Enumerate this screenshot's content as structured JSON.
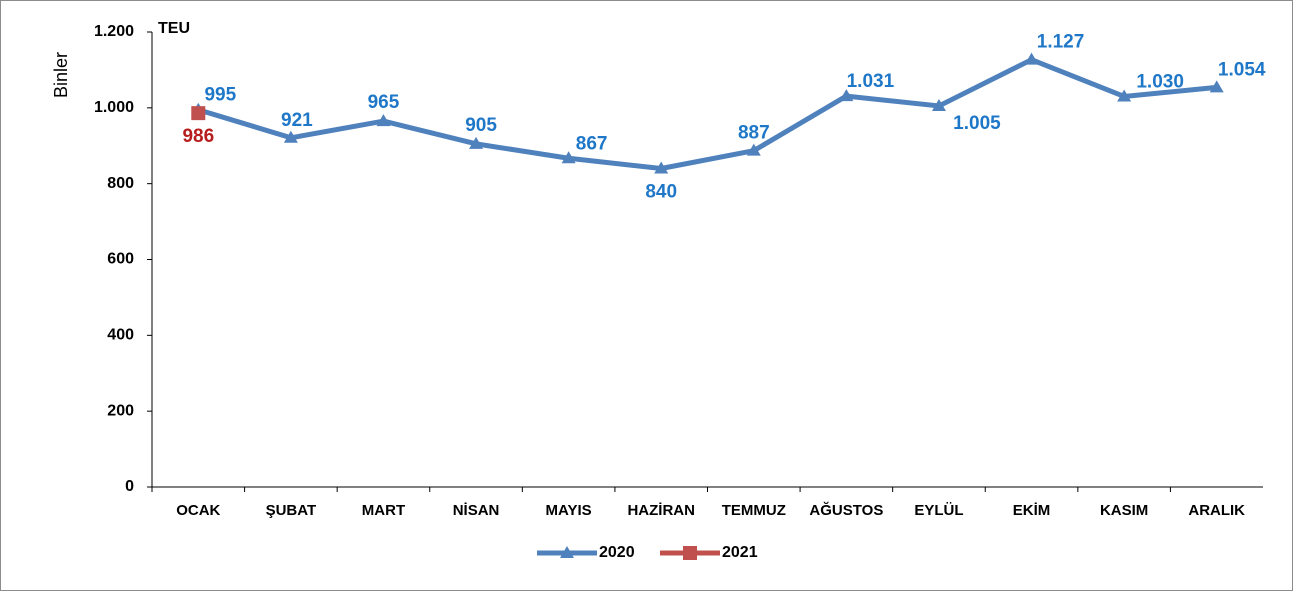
{
  "chart_data": {
    "type": "line",
    "y_axis_label": "Binler",
    "unit_label": "TEU",
    "categories": [
      "OCAK",
      "ŞUBAT",
      "MART",
      "NİSAN",
      "MAYIS",
      "HAZİRAN",
      "TEMMUZ",
      "AĞUSTOS",
      "EYLÜL",
      "EKİM",
      "KASIM",
      "ARALIK"
    ],
    "series": [
      {
        "name": "2020",
        "color": "#4f81bd",
        "label_color": "#1f77c8",
        "marker": "triangle",
        "values": [
          995,
          921,
          965,
          905,
          867,
          840,
          887,
          1031,
          1005,
          1127,
          1030,
          1054
        ],
        "value_labels": [
          "995",
          "921",
          "965",
          "905",
          "867",
          "840",
          "887",
          "1.031",
          "1.005",
          "1.127",
          "1.030",
          "1.054"
        ]
      },
      {
        "name": "2021",
        "color": "#c0504d",
        "label_color": "#b81d1d",
        "marker": "square",
        "values": [
          986,
          null,
          null,
          null,
          null,
          null,
          null,
          null,
          null,
          null,
          null,
          null
        ]
      }
    ],
    "ylim": [
      0,
      1200
    ],
    "yticks": [
      0,
      200,
      400,
      600,
      800,
      {
        "value": 1000,
        "label": "1.000"
      },
      {
        "value": 1200,
        "label": "1.200"
      }
    ],
    "grid": false,
    "legend": "bottom"
  }
}
